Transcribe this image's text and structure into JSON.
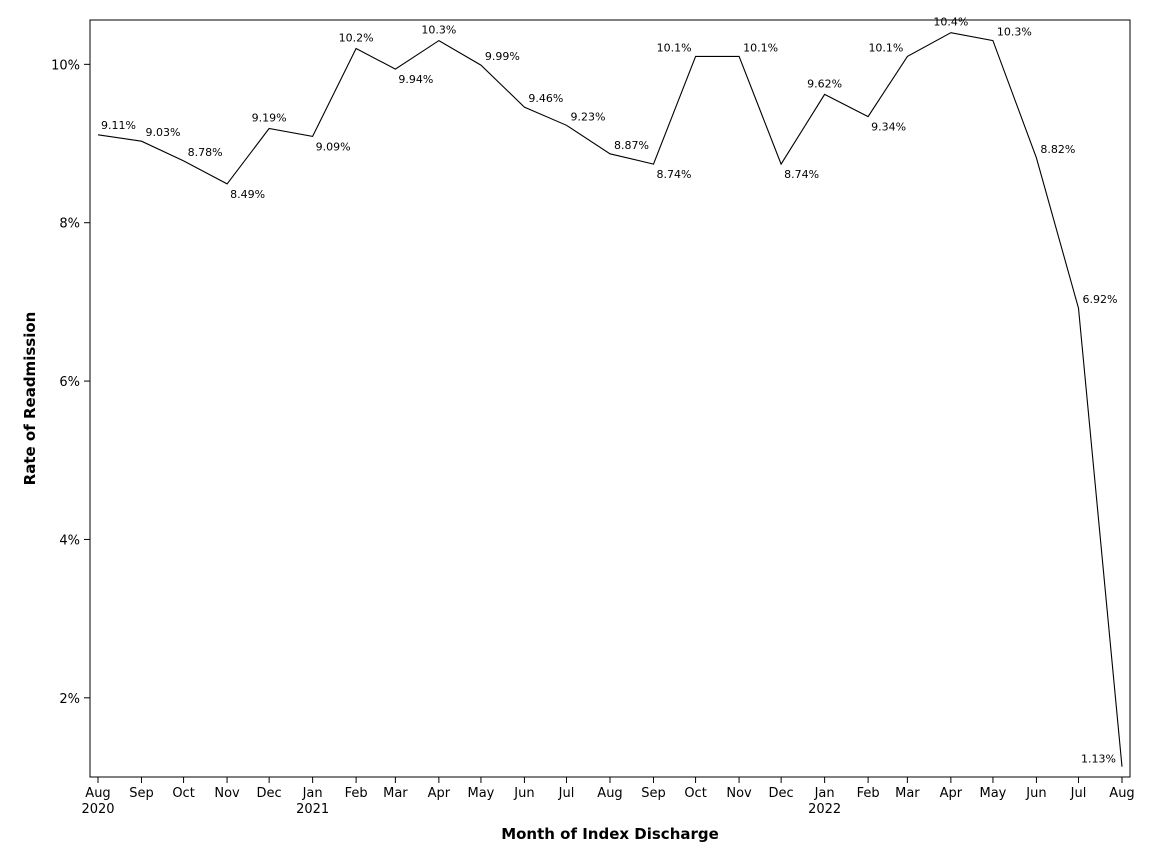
{
  "chart_data": {
    "type": "line",
    "title": "",
    "xlabel": "Month of Index Discharge",
    "ylabel": "Rate of Readmission",
    "categories": [
      "Aug 2020",
      "Sep 2020",
      "Oct 2020",
      "Nov 2020",
      "Dec 2020",
      "Jan 2021",
      "Feb 2021",
      "Mar 2021",
      "Apr 2021",
      "May 2021",
      "Jun 2021",
      "Jul 2021",
      "Aug 2021",
      "Sep 2021",
      "Oct 2021",
      "Nov 2021",
      "Dec 2021",
      "Jan 2022",
      "Feb 2022",
      "Mar 2022",
      "Apr 2022",
      "May 2022",
      "Jun 2022",
      "Jul 2022",
      "Aug 2022"
    ],
    "x_tick_labels": [
      {
        "month": "Aug",
        "year": "2020"
      },
      {
        "month": "Sep",
        "year": ""
      },
      {
        "month": "Oct",
        "year": ""
      },
      {
        "month": "Nov",
        "year": ""
      },
      {
        "month": "Dec",
        "year": ""
      },
      {
        "month": "Jan",
        "year": "2021"
      },
      {
        "month": "Feb",
        "year": ""
      },
      {
        "month": "Mar",
        "year": ""
      },
      {
        "month": "Apr",
        "year": ""
      },
      {
        "month": "May",
        "year": ""
      },
      {
        "month": "Jun",
        "year": ""
      },
      {
        "month": "Jul",
        "year": ""
      },
      {
        "month": "Aug",
        "year": ""
      },
      {
        "month": "Sep",
        "year": ""
      },
      {
        "month": "Oct",
        "year": ""
      },
      {
        "month": "Nov",
        "year": ""
      },
      {
        "month": "Dec",
        "year": ""
      },
      {
        "month": "Jan",
        "year": "2022"
      },
      {
        "month": "Feb",
        "year": ""
      },
      {
        "month": "Mar",
        "year": ""
      },
      {
        "month": "Apr",
        "year": ""
      },
      {
        "month": "May",
        "year": ""
      },
      {
        "month": "Jun",
        "year": ""
      },
      {
        "month": "Jul",
        "year": ""
      },
      {
        "month": "Aug",
        "year": ""
      }
    ],
    "x": [
      "2020-08-01",
      "2020-09-01",
      "2020-10-01",
      "2020-11-01",
      "2020-12-01",
      "2021-01-01",
      "2021-02-01",
      "2021-03-01",
      "2021-04-01",
      "2021-05-01",
      "2021-06-01",
      "2021-07-01",
      "2021-08-01",
      "2021-09-01",
      "2021-10-01",
      "2021-11-01",
      "2021-12-01",
      "2022-01-01",
      "2022-02-01",
      "2022-03-01",
      "2022-04-01",
      "2022-05-01",
      "2022-06-01",
      "2022-07-01",
      "2022-08-01"
    ],
    "series": [
      {
        "values": [
          9.11,
          9.03,
          8.78,
          8.49,
          9.19,
          9.09,
          10.2,
          9.94,
          10.3,
          9.99,
          9.46,
          9.23,
          8.87,
          8.74,
          10.1,
          10.1,
          8.74,
          9.62,
          9.34,
          10.1,
          10.4,
          10.3,
          8.82,
          6.92,
          1.13
        ],
        "labels": [
          "9.11%",
          "9.03%",
          "8.78%",
          "8.49%",
          "9.19%",
          "9.09%",
          "10.2%",
          "9.94%",
          "10.3%",
          "9.99%",
          "9.46%",
          "9.23%",
          "8.87%",
          "8.74%",
          "10.1%",
          "10.1%",
          "8.74%",
          "9.62%",
          "9.34%",
          "10.1%",
          "10.4%",
          "10.3%",
          "8.82%",
          "6.92%",
          "1.13%"
        ],
        "color": "#000000"
      }
    ],
    "ylim": [
      1.0,
      10.56
    ],
    "y_ticks": [
      2,
      4,
      6,
      8,
      10
    ],
    "y_tick_labels": [
      "2%",
      "4%",
      "6%",
      "8%",
      "10%"
    ],
    "grid": false,
    "legend": "none"
  }
}
